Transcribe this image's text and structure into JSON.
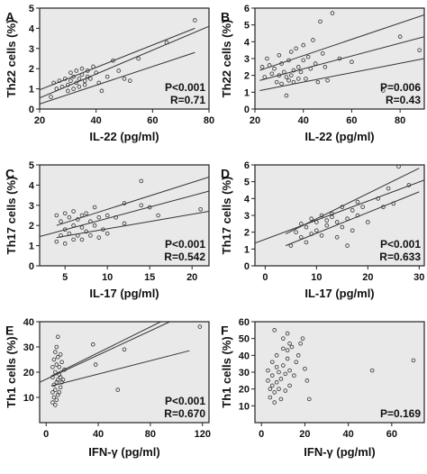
{
  "figure": {
    "background_color": "#e9e9e9",
    "line_color": "#333333",
    "point_color": "#333333"
  },
  "chart_data": [
    {
      "panel": "A",
      "type": "scatter",
      "xlabel": "IL-22 (pg/ml)",
      "ylabel": "Th22 cells (%)",
      "xlim": [
        20,
        80
      ],
      "ylim": [
        0,
        5
      ],
      "xticks": [
        20,
        40,
        60,
        80
      ],
      "yticks": [
        0,
        1,
        2,
        3,
        4,
        5
      ],
      "stats": [
        "P<0.001",
        "R=0.71"
      ],
      "points": [
        [
          24,
          0.6
        ],
        [
          25,
          1.3
        ],
        [
          26,
          1.0
        ],
        [
          27,
          1.4
        ],
        [
          28,
          1.1
        ],
        [
          29,
          1.5
        ],
        [
          30,
          1.2
        ],
        [
          30,
          0.9
        ],
        [
          31,
          1.8
        ],
        [
          31,
          1.4
        ],
        [
          32,
          1.6
        ],
        [
          32,
          1.0
        ],
        [
          33,
          1.9
        ],
        [
          33,
          1.3
        ],
        [
          34,
          1.5
        ],
        [
          34,
          1.1
        ],
        [
          35,
          1.7
        ],
        [
          35,
          2.0
        ],
        [
          36,
          1.4
        ],
        [
          36,
          1.2
        ],
        [
          37,
          1.6
        ],
        [
          37,
          1.9
        ],
        [
          38,
          1.5
        ],
        [
          39,
          2.1
        ],
        [
          40,
          1.8
        ],
        [
          41,
          1.3
        ],
        [
          42,
          0.9
        ],
        [
          44,
          1.6
        ],
        [
          46,
          2.4
        ],
        [
          48,
          1.9
        ],
        [
          50,
          1.5
        ],
        [
          52,
          1.4
        ],
        [
          55,
          2.5
        ],
        [
          65,
          3.3
        ],
        [
          75,
          4.4
        ]
      ],
      "fit": {
        "x": [
          20,
          80
        ],
        "y": [
          0.55,
          4.1
        ]
      },
      "ci_upper": {
        "x": [
          20,
          75
        ],
        "y": [
          0.95,
          4.0
        ]
      },
      "ci_lower": {
        "x": [
          20,
          75
        ],
        "y": [
          0.25,
          2.8
        ]
      }
    },
    {
      "panel": "B",
      "type": "scatter",
      "xlabel": "IL-22 (pg/ml)",
      "ylabel": "Th22 cells (%)",
      "xlim": [
        20,
        90
      ],
      "ylim": [
        0,
        6
      ],
      "xticks": [
        20,
        40,
        60,
        80
      ],
      "yticks": [
        0,
        1,
        2,
        3,
        4,
        5,
        6
      ],
      "stats": [
        "P=0.006",
        "R=0.43"
      ],
      "points": [
        [
          23,
          2.5
        ],
        [
          24,
          1.9
        ],
        [
          25,
          3.0
        ],
        [
          26,
          2.6
        ],
        [
          27,
          2.1
        ],
        [
          28,
          2.4
        ],
        [
          29,
          1.6
        ],
        [
          30,
          2.0
        ],
        [
          30,
          3.2
        ],
        [
          31,
          2.7
        ],
        [
          31,
          1.5
        ],
        [
          32,
          2.2
        ],
        [
          33,
          0.8
        ],
        [
          33,
          1.9
        ],
        [
          34,
          2.9
        ],
        [
          34,
          1.7
        ],
        [
          35,
          3.4
        ],
        [
          35,
          2.0
        ],
        [
          36,
          2.3
        ],
        [
          36,
          1.6
        ],
        [
          37,
          3.6
        ],
        [
          38,
          2.5
        ],
        [
          38,
          1.8
        ],
        [
          39,
          2.2
        ],
        [
          40,
          3.8
        ],
        [
          40,
          2.9
        ],
        [
          41,
          1.8
        ],
        [
          42,
          3.1
        ],
        [
          43,
          2.4
        ],
        [
          44,
          4.1
        ],
        [
          45,
          2.7
        ],
        [
          46,
          1.6
        ],
        [
          47,
          5.2
        ],
        [
          48,
          3.3
        ],
        [
          49,
          2.5
        ],
        [
          50,
          1.7
        ],
        [
          52,
          5.7
        ],
        [
          55,
          3.0
        ],
        [
          60,
          2.8
        ],
        [
          73,
          1.1
        ],
        [
          80,
          4.3
        ],
        [
          88,
          3.5
        ]
      ],
      "fit": {
        "x": [
          22,
          90
        ],
        "y": [
          1.7,
          4.3
        ]
      },
      "ci_upper": {
        "x": [
          22,
          90
        ],
        "y": [
          2.3,
          5.6
        ]
      },
      "ci_lower": {
        "x": [
          22,
          90
        ],
        "y": [
          1.1,
          3.0
        ]
      }
    },
    {
      "panel": "C",
      "type": "scatter",
      "xlabel": "IL-17 (pg/ml)",
      "ylabel": "Th17 cells (%)",
      "xlim": [
        2,
        22
      ],
      "ylim": [
        0,
        5
      ],
      "xticks": [
        5,
        10,
        15,
        20
      ],
      "yticks": [
        0,
        1,
        2,
        3,
        4,
        5
      ],
      "stats": [
        "P<0.001",
        "R=0.542"
      ],
      "points": [
        [
          4,
          2.5
        ],
        [
          4,
          1.2
        ],
        [
          4.5,
          2.2
        ],
        [
          4.5,
          1.5
        ],
        [
          5,
          2.6
        ],
        [
          5,
          1.8
        ],
        [
          5,
          1.1
        ],
        [
          5.5,
          2.4
        ],
        [
          5.5,
          1.6
        ],
        [
          6,
          2.7
        ],
        [
          6,
          2.0
        ],
        [
          6,
          1.3
        ],
        [
          6.5,
          2.3
        ],
        [
          6.5,
          1.5
        ],
        [
          7,
          2.5
        ],
        [
          7,
          1.9
        ],
        [
          7,
          1.3
        ],
        [
          7.5,
          2.6
        ],
        [
          7.5,
          1.7
        ],
        [
          8,
          2.2
        ],
        [
          8,
          1.5
        ],
        [
          8.5,
          2.9
        ],
        [
          8.5,
          2.0
        ],
        [
          9,
          2.4
        ],
        [
          9,
          1.4
        ],
        [
          9.5,
          1.8
        ],
        [
          10,
          2.5
        ],
        [
          10,
          1.6
        ],
        [
          11,
          2.4
        ],
        [
          12,
          3.1
        ],
        [
          12,
          2.1
        ],
        [
          14,
          4.2
        ],
        [
          14,
          3.0
        ],
        [
          15,
          2.9
        ],
        [
          16,
          2.5
        ],
        [
          21,
          2.8
        ]
      ],
      "fit": {
        "x": [
          2,
          22
        ],
        "y": [
          1.45,
          3.7
        ]
      },
      "ci_upper": {
        "x": [
          4,
          22
        ],
        "y": [
          2.0,
          4.4
        ]
      },
      "ci_lower": {
        "x": [
          4,
          22
        ],
        "y": [
          1.4,
          2.7
        ]
      }
    },
    {
      "panel": "D",
      "type": "scatter",
      "xlabel": "IL-17 (pg/ml)",
      "ylabel": "Th17 cells (%)",
      "xlim": [
        -2,
        31
      ],
      "ylim": [
        0,
        6
      ],
      "xticks": [
        0,
        10,
        20,
        30
      ],
      "yticks": [
        0,
        1,
        2,
        3,
        4,
        5,
        6
      ],
      "stats": [
        "P<0.001",
        "R=0.633"
      ],
      "points": [
        [
          5,
          1.2
        ],
        [
          6,
          2.0
        ],
        [
          7,
          2.5
        ],
        [
          7,
          1.7
        ],
        [
          8,
          2.3
        ],
        [
          8,
          1.4
        ],
        [
          9,
          2.8
        ],
        [
          9,
          1.9
        ],
        [
          10,
          2.6
        ],
        [
          10,
          2.1
        ],
        [
          11,
          3.0
        ],
        [
          11,
          1.8
        ],
        [
          12,
          2.7
        ],
        [
          12,
          2.4
        ],
        [
          13,
          3.1
        ],
        [
          13,
          2.9
        ],
        [
          14,
          2.6
        ],
        [
          14,
          1.7
        ],
        [
          15,
          3.5
        ],
        [
          15,
          2.3
        ],
        [
          16,
          1.2
        ],
        [
          16,
          2.8
        ],
        [
          17,
          3.3
        ],
        [
          17,
          2.1
        ],
        [
          18,
          3.8
        ],
        [
          18,
          3.0
        ],
        [
          19,
          3.5
        ],
        [
          20,
          2.6
        ],
        [
          22,
          4.0
        ],
        [
          23,
          3.5
        ],
        [
          24,
          4.6
        ],
        [
          25,
          3.7
        ],
        [
          26,
          5.9
        ],
        [
          28,
          4.8
        ]
      ],
      "fit": {
        "x": [
          -2,
          31
        ],
        "y": [
          1.35,
          5.1
        ]
      },
      "ci_upper": {
        "x": [
          4,
          30
        ],
        "y": [
          1.9,
          5.8
        ]
      },
      "ci_lower": {
        "x": [
          4,
          30
        ],
        "y": [
          1.2,
          4.4
        ]
      }
    },
    {
      "panel": "E",
      "type": "scatter",
      "xlabel": "IFN-γ (pg/ml)",
      "ylabel": "Th1 cells (%)",
      "xlim": [
        -5,
        125
      ],
      "ylim": [
        0,
        40
      ],
      "xticks": [
        0,
        40,
        80,
        120
      ],
      "yticks": [
        10,
        20,
        30,
        40
      ],
      "stats": [
        "P<0.001",
        "R=0.670"
      ],
      "points": [
        [
          5,
          8
        ],
        [
          5,
          12
        ],
        [
          5,
          18
        ],
        [
          5,
          22
        ],
        [
          6,
          10
        ],
        [
          6,
          15
        ],
        [
          6,
          25
        ],
        [
          7,
          7
        ],
        [
          7,
          13
        ],
        [
          7,
          20
        ],
        [
          7,
          28
        ],
        [
          8,
          9
        ],
        [
          8,
          16
        ],
        [
          8,
          23
        ],
        [
          8,
          30
        ],
        [
          9,
          11
        ],
        [
          9,
          17
        ],
        [
          9,
          26
        ],
        [
          9,
          34
        ],
        [
          10,
          12
        ],
        [
          10,
          19
        ],
        [
          10,
          22
        ],
        [
          11,
          14
        ],
        [
          11,
          18
        ],
        [
          11,
          27
        ],
        [
          12,
          16
        ],
        [
          12,
          24
        ],
        [
          13,
          17
        ],
        [
          14,
          21
        ],
        [
          36,
          31
        ],
        [
          38,
          23
        ],
        [
          60,
          29
        ],
        [
          55,
          13
        ],
        [
          118,
          38
        ]
      ],
      "fit": {
        "x": [
          -5,
          95
        ],
        "y": [
          16.0,
          40
        ]
      },
      "ci_upper": {
        "x": [
          4,
          88
        ],
        "y": [
          18.5,
          40
        ]
      },
      "ci_lower": {
        "x": [
          4,
          110
        ],
        "y": [
          14.5,
          28.5
        ]
      }
    },
    {
      "panel": "F",
      "type": "scatter",
      "xlabel": "IFN-γ (pg/ml)",
      "ylabel": "Th1 cells (%)",
      "xlim": [
        -3,
        75
      ],
      "ylim": [
        0,
        60
      ],
      "xticks": [
        0,
        20,
        40,
        60
      ],
      "yticks": [
        10,
        20,
        30,
        40,
        50,
        60
      ],
      "stats": [
        "P=0.169"
      ],
      "points": [
        [
          3,
          31
        ],
        [
          3,
          25
        ],
        [
          4,
          20
        ],
        [
          4,
          15
        ],
        [
          5,
          36
        ],
        [
          5,
          28
        ],
        [
          5,
          22
        ],
        [
          6,
          55
        ],
        [
          6,
          18
        ],
        [
          6,
          12
        ],
        [
          7,
          40
        ],
        [
          7,
          33
        ],
        [
          7,
          24
        ],
        [
          8,
          30
        ],
        [
          8,
          20
        ],
        [
          9,
          26
        ],
        [
          9,
          14
        ],
        [
          10,
          50
        ],
        [
          10,
          44
        ],
        [
          10,
          34
        ],
        [
          11,
          29
        ],
        [
          11,
          19
        ],
        [
          12,
          53
        ],
        [
          12,
          43
        ],
        [
          12,
          38
        ],
        [
          13,
          47
        ],
        [
          13,
          31
        ],
        [
          13,
          22
        ],
        [
          14,
          45
        ],
        [
          15,
          28
        ],
        [
          16,
          36
        ],
        [
          17,
          40
        ],
        [
          18,
          47
        ],
        [
          19,
          50
        ],
        [
          20,
          32
        ],
        [
          21,
          25
        ],
        [
          22,
          14
        ],
        [
          51,
          31
        ],
        [
          70,
          37
        ]
      ],
      "fit": null,
      "ci_upper": null,
      "ci_lower": null
    }
  ]
}
